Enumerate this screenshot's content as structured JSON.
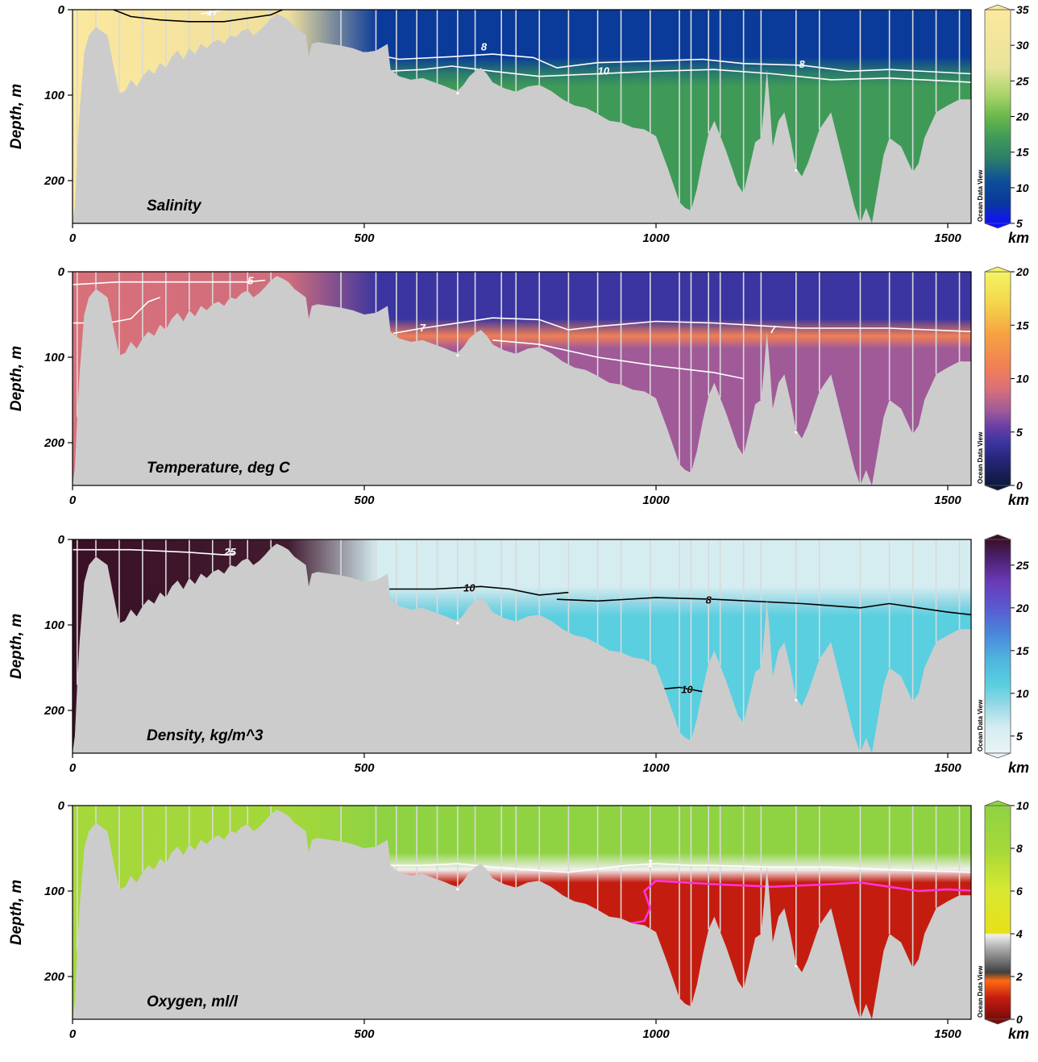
{
  "figure": {
    "distance_unit": "km",
    "depth_label": "Depth, m",
    "watermark": "Ocean Data View"
  },
  "chart_data": [
    {
      "type": "heatmap",
      "title": "Salinity",
      "xlabel": "km",
      "ylabel": "Depth, m",
      "xlim": [
        0,
        1540
      ],
      "ylim": [
        250,
        0
      ],
      "x_ticks": [
        0,
        500,
        1000,
        1500
      ],
      "y_ticks": [
        0,
        100,
        200
      ],
      "colorbar": {
        "range": [
          5,
          35
        ],
        "ticks": [
          5,
          10,
          15,
          20,
          25,
          30,
          35
        ],
        "stops": [
          {
            "value": 5,
            "color": "#1010ff"
          },
          {
            "value": 8,
            "color": "#0a3a9a"
          },
          {
            "value": 11,
            "color": "#0d4f98"
          },
          {
            "value": 14,
            "color": "#2b7d6a"
          },
          {
            "value": 17,
            "color": "#3f9a58"
          },
          {
            "value": 20,
            "color": "#6ab84a"
          },
          {
            "value": 23,
            "color": "#a8d46a"
          },
          {
            "value": 27,
            "color": "#e9e49a"
          },
          {
            "value": 35,
            "color": "#fbe89e"
          }
        ]
      },
      "surface_value": 7,
      "deep_value": 16,
      "west_value": 30,
      "interface_value": 12,
      "interface_color": "#ffffff",
      "contours": [
        {
          "label": "8",
          "color": "#ffffff",
          "points": [
            [
              500,
              50
            ],
            [
              560,
              58
            ],
            [
              650,
              55
            ],
            [
              720,
              52
            ],
            [
              790,
              56
            ],
            [
              830,
              68
            ],
            [
              900,
              62
            ],
            [
              1000,
              60
            ],
            [
              1080,
              58
            ],
            [
              1150,
              63
            ],
            [
              1250,
              65
            ],
            [
              1330,
              72
            ],
            [
              1400,
              70
            ],
            [
              1540,
              75
            ]
          ],
          "labels_at": [
            [
              705,
              44
            ],
            [
              1250,
              64
            ]
          ]
        },
        {
          "label": "10",
          "color": "#ffffff",
          "points": [
            [
              540,
              72
            ],
            [
              600,
              70
            ],
            [
              650,
              66
            ],
            [
              720,
              72
            ],
            [
              800,
              78
            ],
            [
              900,
              75
            ],
            [
              1000,
              72
            ],
            [
              1100,
              70
            ],
            [
              1200,
              75
            ],
            [
              1300,
              82
            ],
            [
              1400,
              80
            ],
            [
              1540,
              85
            ]
          ],
          "labels_at": [
            [
              910,
              72
            ]
          ]
        },
        {
          "label": "17",
          "color": "#ffffff",
          "points": [
            [
              220,
              5
            ],
            [
              260,
              0
            ]
          ],
          "labels_at": [
            [
              240,
              3
            ]
          ]
        },
        {
          "label": "",
          "color": "#000000",
          "points": [
            [
              70,
              0
            ],
            [
              100,
              8
            ],
            [
              150,
              12
            ],
            [
              200,
              14
            ],
            [
              260,
              14
            ],
            [
              300,
              10
            ],
            [
              340,
              6
            ],
            [
              360,
              0
            ]
          ],
          "labels_at": []
        }
      ]
    },
    {
      "type": "heatmap",
      "title": "Temperature, deg C",
      "xlabel": "km",
      "ylabel": "Depth, m",
      "xlim": [
        0,
        1540
      ],
      "ylim": [
        250,
        0
      ],
      "x_ticks": [
        0,
        500,
        1000,
        1500
      ],
      "y_ticks": [
        0,
        100,
        200
      ],
      "colorbar": {
        "range": [
          0,
          20
        ],
        "ticks": [
          0,
          5,
          10,
          15,
          20
        ],
        "stops": [
          {
            "value": 0,
            "color": "#0b1a3a"
          },
          {
            "value": 2.5,
            "color": "#27267a"
          },
          {
            "value": 4,
            "color": "#3a35a0"
          },
          {
            "value": 5.5,
            "color": "#6a3ea6"
          },
          {
            "value": 7,
            "color": "#a05a98"
          },
          {
            "value": 9,
            "color": "#d8707a"
          },
          {
            "value": 11,
            "color": "#f07f55"
          },
          {
            "value": 14,
            "color": "#f6a042"
          },
          {
            "value": 17,
            "color": "#f3d54a"
          },
          {
            "value": 20,
            "color": "#f4f466"
          }
        ]
      },
      "surface_value": 3,
      "deep_value": 6,
      "west_value": 8.5,
      "interface_value": 9.5,
      "interface_color": "#ffffff",
      "contours": [
        {
          "label": "5",
          "color": "#ffffff",
          "points": [
            [
              0,
              15
            ],
            [
              80,
              12
            ],
            [
              200,
              12
            ],
            [
              300,
              12
            ],
            [
              330,
              10
            ]
          ],
          "labels_at": [
            [
              305,
              11
            ]
          ]
        },
        {
          "label": "7",
          "color": "#ffffff",
          "points": [
            [
              550,
              72
            ],
            [
              600,
              66
            ],
            [
              660,
              60
            ],
            [
              720,
              54
            ],
            [
              800,
              56
            ],
            [
              850,
              68
            ],
            [
              900,
              64
            ],
            [
              1000,
              58
            ],
            [
              1100,
              60
            ],
            [
              1150,
              62
            ],
            [
              1250,
              66
            ],
            [
              1330,
              66
            ],
            [
              1400,
              66
            ],
            [
              1540,
              70
            ]
          ],
          "labels_at": [
            [
              600,
              66
            ],
            [
              1200,
              68
            ]
          ]
        },
        {
          "label": "",
          "color": "#ffffff",
          "points": [
            [
              0,
              60
            ],
            [
              60,
              60
            ],
            [
              100,
              55
            ],
            [
              130,
              35
            ],
            [
              150,
              30
            ]
          ],
          "labels_at": []
        },
        {
          "label": "",
          "color": "#ffffff",
          "points": [
            [
              720,
              80
            ],
            [
              800,
              85
            ],
            [
              900,
              100
            ],
            [
              1000,
              110
            ],
            [
              1100,
              118
            ],
            [
              1150,
              125
            ]
          ],
          "labels_at": []
        }
      ]
    },
    {
      "type": "heatmap",
      "title": "Density, kg/m^3",
      "xlabel": "km",
      "ylabel": "Depth, m",
      "xlim": [
        0,
        1540
      ],
      "ylim": [
        250,
        0
      ],
      "x_ticks": [
        0,
        500,
        1000,
        1500
      ],
      "y_ticks": [
        0,
        100,
        200
      ],
      "colorbar": {
        "range": [
          3,
          28
        ],
        "ticks": [
          5,
          10,
          15,
          20,
          25
        ],
        "stops": [
          {
            "value": 3,
            "color": "#e9f4f6"
          },
          {
            "value": 6,
            "color": "#d5edf1"
          },
          {
            "value": 9,
            "color": "#8ed6e4"
          },
          {
            "value": 11,
            "color": "#59cfe0"
          },
          {
            "value": 14,
            "color": "#4fb4df"
          },
          {
            "value": 17,
            "color": "#4a86db"
          },
          {
            "value": 20,
            "color": "#5a5ad0"
          },
          {
            "value": 23,
            "color": "#6a3ab8"
          },
          {
            "value": 26,
            "color": "#4a1f6a"
          },
          {
            "value": 28,
            "color": "#3a1025"
          }
        ]
      },
      "surface_value": 6,
      "deep_value": 10,
      "west_value": 27,
      "interface_value": 8.5,
      "interface_color": "#333333",
      "contours": [
        {
          "label": "25",
          "color": "#ffffff",
          "points": [
            [
              0,
              12
            ],
            [
              100,
              12
            ],
            [
              200,
              15
            ],
            [
              260,
              18
            ],
            [
              280,
              16
            ]
          ],
          "labels_at": [
            [
              270,
              15
            ]
          ]
        },
        {
          "label": "10",
          "color": "#000000",
          "points": [
            [
              540,
              58
            ],
            [
              620,
              58
            ],
            [
              700,
              55
            ],
            [
              750,
              58
            ],
            [
              800,
              65
            ],
            [
              850,
              62
            ]
          ],
          "labels_at": [
            [
              680,
              57
            ]
          ]
        },
        {
          "label": "8",
          "color": "#000000",
          "points": [
            [
              830,
              70
            ],
            [
              900,
              72
            ],
            [
              1000,
              68
            ],
            [
              1100,
              70
            ],
            [
              1250,
              75
            ],
            [
              1350,
              80
            ],
            [
              1400,
              75
            ],
            [
              1450,
              80
            ],
            [
              1500,
              85
            ],
            [
              1540,
              88
            ]
          ],
          "labels_at": [
            [
              1090,
              71
            ]
          ]
        },
        {
          "label": "10",
          "color": "#000000",
          "points": [
            [
              1010,
              175
            ],
            [
              1040,
              173
            ],
            [
              1080,
              178
            ]
          ],
          "labels_at": [
            [
              1053,
              176
            ]
          ]
        }
      ]
    },
    {
      "type": "heatmap",
      "title": "Oxygen, ml/l",
      "xlabel": "km",
      "ylabel": "Depth, m",
      "xlim": [
        0,
        1540
      ],
      "ylim": [
        250,
        0
      ],
      "x_ticks": [
        0,
        500,
        1000,
        1500
      ],
      "y_ticks": [
        0,
        100,
        200
      ],
      "colorbar": {
        "range": [
          0,
          10
        ],
        "ticks": [
          0,
          2,
          4,
          6,
          8,
          10
        ],
        "stops": [
          {
            "value": 0,
            "color": "#7a0a0a"
          },
          {
            "value": 1,
            "color": "#c41d10"
          },
          {
            "value": 1.8,
            "color": "#ff6a10"
          },
          {
            "value": 2.2,
            "color": "#404040"
          },
          {
            "value": 3.3,
            "color": "#aaaaaa"
          },
          {
            "value": 3.95,
            "color": "#f0f0f0"
          },
          {
            "value": 4.05,
            "color": "#e8e01a"
          },
          {
            "value": 6,
            "color": "#d8e830"
          },
          {
            "value": 8,
            "color": "#a5d83a"
          },
          {
            "value": 10,
            "color": "#8fd342"
          }
        ]
      },
      "surface_value": 9.5,
      "deep_value": 0.1,
      "west_value": 7,
      "interface_value": 3.6,
      "interface_color": "#ffffff",
      "contours": [
        {
          "label": "1",
          "color": "#ffffff",
          "points": [
            [
              540,
              70
            ],
            [
              600,
              70
            ],
            [
              660,
              68
            ],
            [
              720,
              72
            ],
            [
              800,
              76
            ],
            [
              850,
              78
            ],
            [
              900,
              74
            ],
            [
              950,
              70
            ],
            [
              1000,
              68
            ],
            [
              1060,
              70
            ],
            [
              1100,
              70
            ],
            [
              1200,
              72
            ],
            [
              1300,
              72
            ],
            [
              1400,
              75
            ],
            [
              1540,
              78
            ]
          ],
          "labels_at": [
            [
              990,
              68
            ]
          ]
        },
        {
          "label": "",
          "color": "#ff33dd",
          "points": [
            [
              1550,
              100
            ],
            [
              1500,
              98
            ],
            [
              1450,
              100
            ],
            [
              1400,
              95
            ],
            [
              1350,
              90
            ],
            [
              1300,
              92
            ],
            [
              1200,
              95
            ],
            [
              1100,
              92
            ],
            [
              1000,
              88
            ],
            [
              980,
              100
            ],
            [
              990,
              120
            ],
            [
              980,
              135
            ],
            [
              940,
              140
            ],
            [
              920,
              143
            ]
          ],
          "labels_at": []
        }
      ]
    }
  ]
}
